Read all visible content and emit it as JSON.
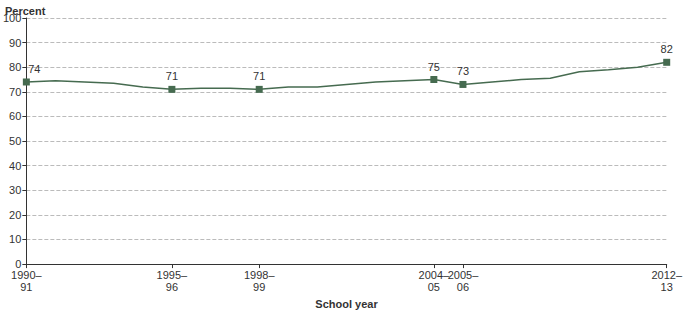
{
  "chart_data": {
    "type": "line",
    "y_label": "Percent",
    "x_label": "School year",
    "categories": [
      "1990–91",
      null,
      null,
      null,
      null,
      "1995–96",
      null,
      null,
      "1998–99",
      null,
      null,
      null,
      null,
      null,
      "2004–05",
      "2005–06",
      null,
      null,
      null,
      null,
      null,
      null,
      "2012–13"
    ],
    "values": [
      74,
      74.5,
      74,
      73.5,
      72,
      71,
      71.5,
      71.5,
      71,
      72,
      72,
      73,
      74,
      74.5,
      75,
      73,
      74,
      75,
      75.5,
      78.2,
      79,
      80,
      82
    ],
    "color": "#466b50",
    "marker": "square",
    "data_labels": true,
    "ylim": [
      0,
      100
    ],
    "yticks": [
      0,
      10,
      20,
      30,
      40,
      50,
      60,
      70,
      80,
      90,
      100
    ],
    "grid": true
  }
}
